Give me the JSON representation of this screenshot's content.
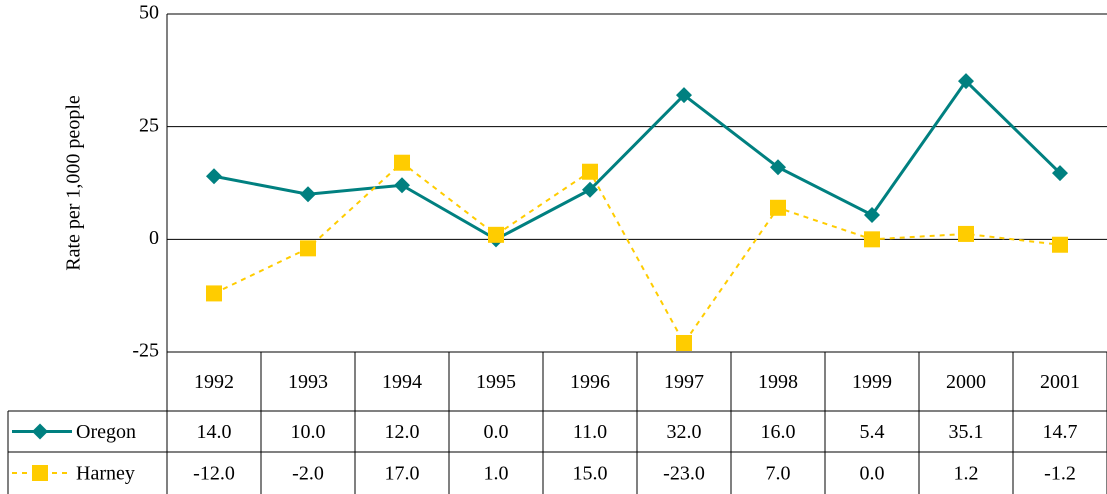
{
  "chart_data": {
    "type": "line",
    "y_label": "Rate per 1,000 people",
    "categories": [
      "1992",
      "1993",
      "1994",
      "1995",
      "1996",
      "1997",
      "1998",
      "1999",
      "2000",
      "2001"
    ],
    "series": [
      {
        "name": "Oregon",
        "color": "#008080",
        "dashed": false,
        "marker": "diamond",
        "values": [
          14,
          10,
          12,
          0,
          11,
          32,
          16,
          5.4,
          35.1,
          14.7
        ],
        "value_labels": [
          "14.0",
          "10.0",
          "12.0",
          "0.0",
          "11.0",
          "32.0",
          "16.0",
          "5.4",
          "35.1",
          "14.7"
        ]
      },
      {
        "name": "Harney",
        "color": "#ffcc00",
        "dashed": true,
        "marker": "square",
        "values": [
          -12,
          -2,
          17,
          1,
          15,
          -23,
          7,
          0,
          1.2,
          -1.2
        ],
        "value_labels": [
          "-12.0",
          "-2.0",
          "17.0",
          "1.0",
          "15.0",
          "-23.0",
          "7.0",
          "0.0",
          "1.2",
          "-1.2"
        ]
      }
    ],
    "ylim": [
      -25,
      50
    ],
    "yticks": [
      -25,
      0,
      25,
      50
    ],
    "grid": true
  }
}
